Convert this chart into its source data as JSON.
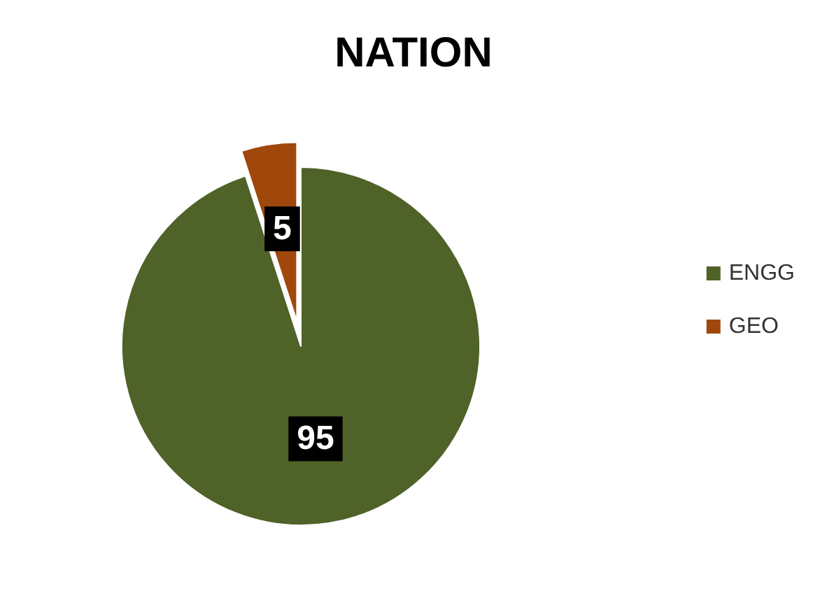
{
  "chart_data": {
    "type": "pie",
    "title": "NATION",
    "categories": [
      "ENGG",
      "GEO"
    ],
    "values": [
      95,
      5
    ],
    "colors": [
      "#4f6228",
      "#a0480c"
    ],
    "data_labels": true,
    "legend": "right"
  }
}
